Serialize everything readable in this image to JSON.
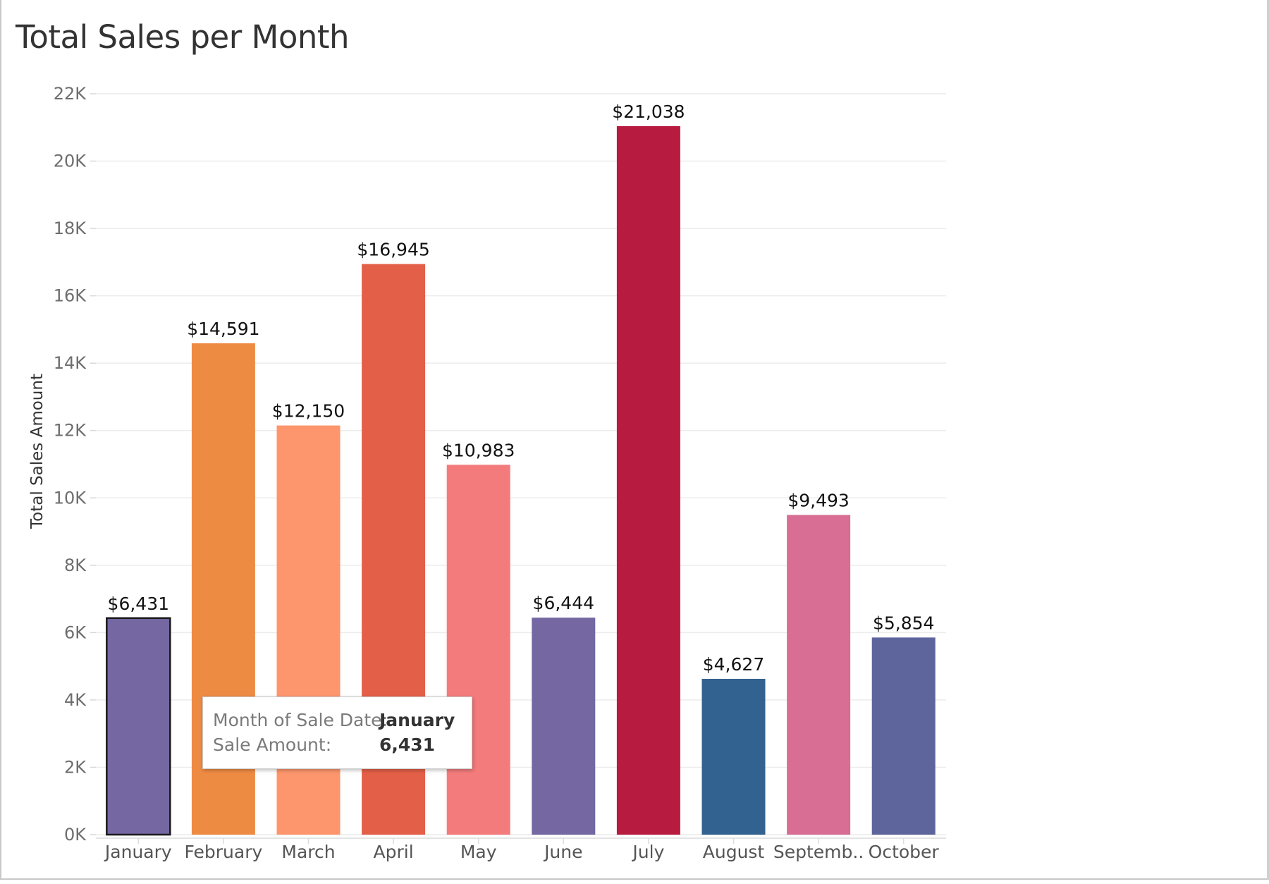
{
  "chart_data": {
    "type": "bar",
    "title": "Total Sales per Month",
    "ylabel": "Total Sales Amount",
    "xlabel": "",
    "ylim": [
      0,
      22000
    ],
    "yticks": [
      0,
      2000,
      4000,
      6000,
      8000,
      10000,
      12000,
      14000,
      16000,
      18000,
      20000,
      22000
    ],
    "ytick_labels": [
      "0K",
      "2K",
      "4K",
      "6K",
      "8K",
      "10K",
      "12K",
      "14K",
      "16K",
      "18K",
      "20K",
      "22K"
    ],
    "grid": true,
    "categories": [
      "January",
      "February",
      "March",
      "April",
      "May",
      "June",
      "July",
      "August",
      "Septemb..",
      "October"
    ],
    "values": [
      6431,
      14591,
      12150,
      16945,
      10983,
      6444,
      21038,
      4627,
      9493,
      5854
    ],
    "data_labels": [
      "$6,431",
      "$14,591",
      "$12,150",
      "$16,945",
      "$10,983",
      "$6,444",
      "$21,038",
      "$4,627",
      "$9,493",
      "$5,854"
    ],
    "colors": [
      "#7467a2",
      "#ee8b43",
      "#fd966c",
      "#e45f48",
      "#f47b7c",
      "#7467a2",
      "#b81b40",
      "#32628f",
      "#d86e93",
      "#5e659c"
    ],
    "selected": "January"
  },
  "tooltip": {
    "month_key": "Month of Sale Date:",
    "month_value": "January",
    "amount_key": "Sale Amount:",
    "amount_value": "6,431"
  }
}
